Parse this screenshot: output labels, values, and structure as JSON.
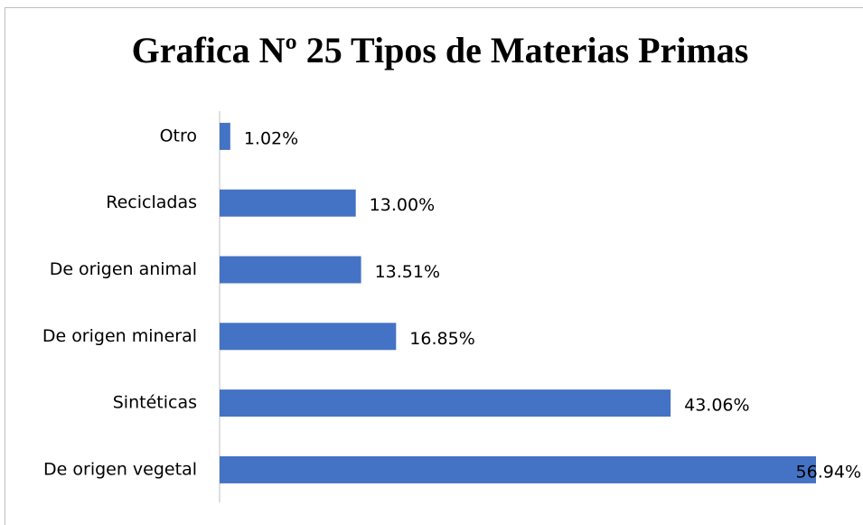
{
  "chart_data": {
    "type": "bar",
    "orientation": "horizontal",
    "title": "Grafica Nº 25 Tipos de Materias Primas",
    "categories": [
      "Otro",
      "Recicladas",
      "De origen animal",
      "De origen mineral",
      "Sintéticas",
      "De origen vegetal"
    ],
    "values": [
      1.02,
      13.0,
      13.51,
      16.85,
      43.06,
      56.94
    ],
    "value_labels": [
      "1.02%",
      "13.00%",
      "13.51%",
      "16.85%",
      "43.06%",
      "56.94%"
    ],
    "color": "#4472c4"
  }
}
